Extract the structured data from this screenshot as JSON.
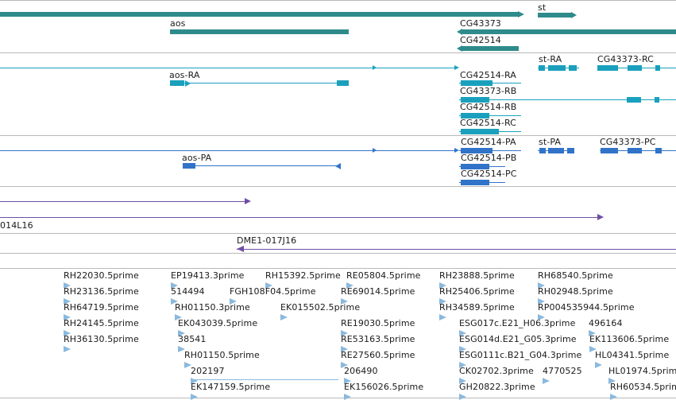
{
  "genes": [
    "st",
    "aos",
    "CG43373",
    "CG42514"
  ],
  "transcripts_1": [
    "aos-RA",
    "CG42514-RA",
    "CG43373-RB",
    "CG42514-RB",
    "CG42514-RC",
    "st-RA",
    "CG43373-RC"
  ],
  "transcripts_2": [
    "aos-PA",
    "CG42514-PA",
    "CG42514-PB",
    "CG42514-PC",
    "st-PA",
    "CG43373-PC"
  ],
  "clones": [
    "014L16",
    "DME1-017J16"
  ],
  "ests": [
    "RH22030.5prime",
    "RH23136.5prime",
    "RH64719.5prime",
    "RH24145.5prime",
    "RH36130.5prime",
    "EP19413.3prime",
    "514494",
    "RH01150.3prime",
    "EK043039.5prime",
    "38541",
    "RH01150.5prime",
    "202197",
    "EK147159.5prime",
    "RH15392.5prime",
    "FGH108F04.5prime",
    "EK015502.5prime",
    "RE05804.5prime",
    "RE69014.5prime",
    "RE19030.5prime",
    "RE53163.5prime",
    "RE27560.5prime",
    "206490",
    "EK156026.5prime",
    "RH23888.5prime",
    "RH25406.5prime",
    "RH34589.5prime",
    "ESG017c.E21_H06.3prime",
    "ESG014d.E21_G05.3prime",
    "ESG0111c.B21_G04.3prime",
    "CK02702.3prime",
    "GH20822.3prime",
    "RH68540.5prime",
    "RH02948.5prime",
    "RP004535944.5prime",
    "496164",
    "EK113606.5prime",
    "HL04341.5prime",
    "4770525",
    "HL01974.5prime",
    "RH60534.5prime"
  ],
  "colors": {
    "gene": "#2f8b8b",
    "transcript": "#1aa0bd",
    "protein": "#3173c8",
    "clone": "#6f4fa6",
    "est": "#8bb9dd"
  }
}
